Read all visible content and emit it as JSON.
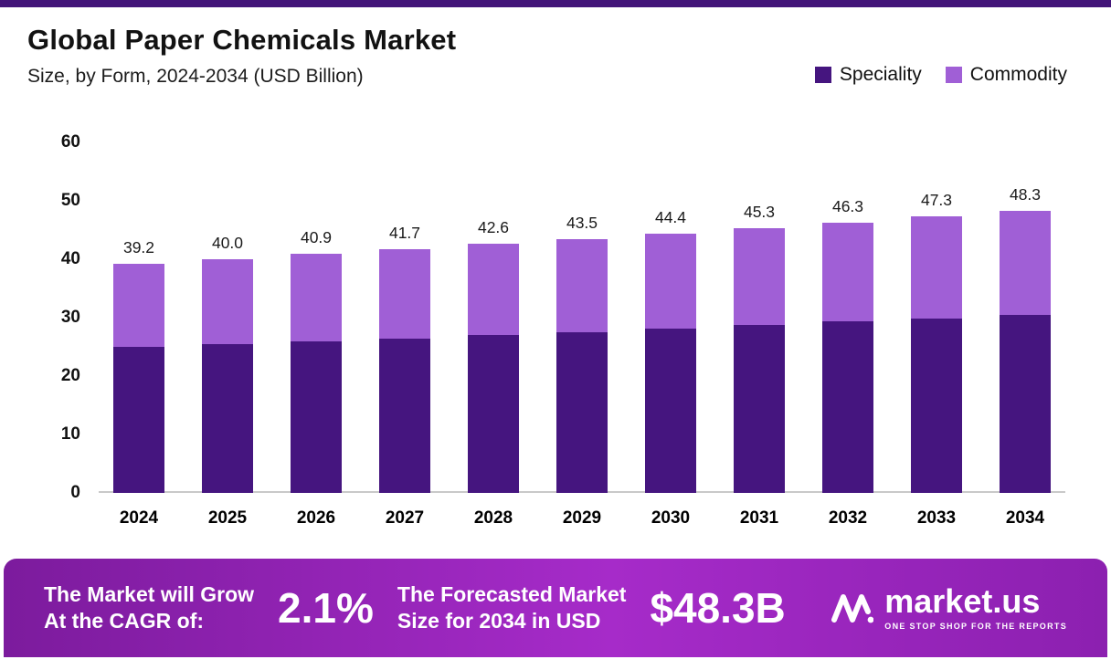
{
  "header": {
    "title": "Global Paper Chemicals Market",
    "subtitle": "Size, by Form, 2024-2034 (USD Billion)"
  },
  "chart_data": {
    "type": "bar",
    "stacked": true,
    "title": "Global Paper Chemicals Market",
    "subtitle": "Size, by Form, 2024-2034 (USD Billion)",
    "categories": [
      "2024",
      "2025",
      "2026",
      "2027",
      "2028",
      "2029",
      "2030",
      "2031",
      "2032",
      "2033",
      "2034"
    ],
    "series": [
      {
        "name": "Speciality",
        "color": "#45157f",
        "values": [
          25.0,
          25.4,
          25.9,
          26.4,
          27.0,
          27.5,
          28.1,
          28.7,
          29.3,
          29.9,
          30.5
        ]
      },
      {
        "name": "Commodity",
        "color": "#a05fd6",
        "values": [
          14.2,
          14.6,
          15.0,
          15.3,
          15.6,
          16.0,
          16.3,
          16.6,
          17.0,
          17.4,
          17.8
        ]
      }
    ],
    "totals": [
      39.2,
      40.0,
      40.9,
      41.7,
      42.6,
      43.5,
      44.4,
      45.3,
      46.3,
      47.3,
      48.3
    ],
    "total_labels": [
      "39.2",
      "40.0",
      "40.9",
      "41.7",
      "42.6",
      "43.5",
      "44.4",
      "45.3",
      "46.3",
      "47.3",
      "48.3"
    ],
    "ylim": [
      0,
      60
    ],
    "yticks": [
      0,
      10,
      20,
      30,
      40,
      50,
      60
    ],
    "grid": false,
    "legend_position": "top-right"
  },
  "banner": {
    "cagr_line1": "The Market will Grow",
    "cagr_line2": "At the CAGR of:",
    "cagr_value": "2.1%",
    "forecast_line1": "The Forecasted Market",
    "forecast_line2": "Size for 2034 in USD",
    "forecast_value": "$48.3B",
    "logo_text": "market.us",
    "logo_tagline": "ONE STOP SHOP FOR THE REPORTS"
  },
  "colors": {
    "speciality": "#45157f",
    "commodity": "#a05fd6",
    "top_stripe": "#431579",
    "banner_gradient_start": "#7c1b9d",
    "banner_gradient_mid": "#a62bc9",
    "banner_gradient_end": "#8c20b0"
  }
}
